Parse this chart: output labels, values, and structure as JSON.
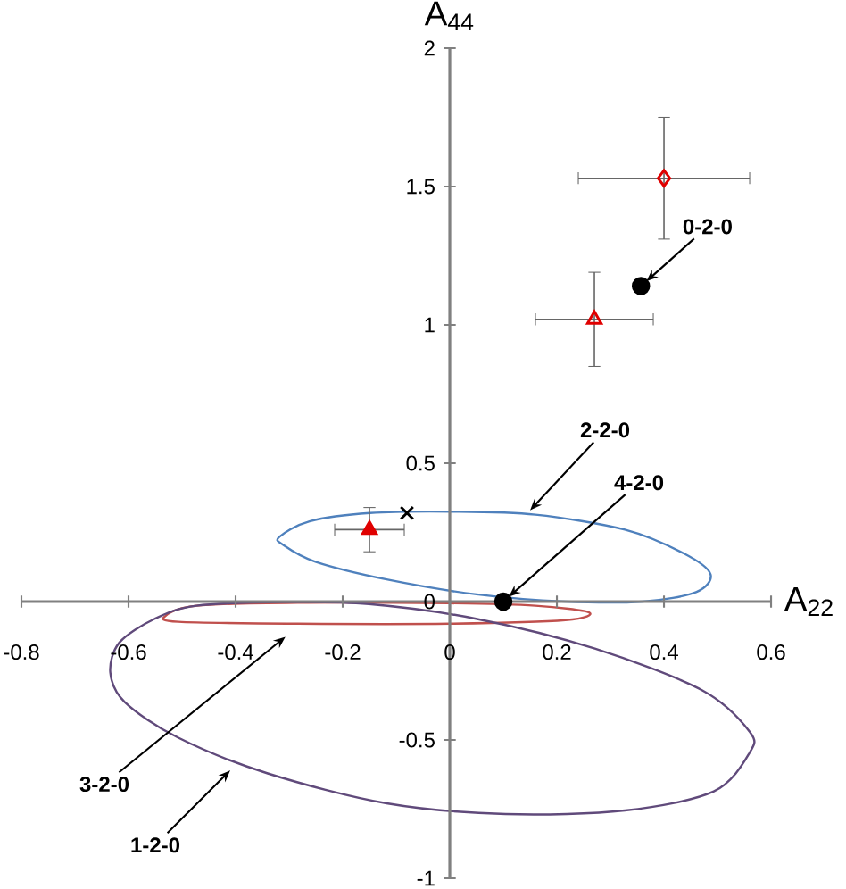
{
  "chart_data": {
    "type": "scatter",
    "xlabel": "A$_{22}$",
    "ylabel": "A$_{44}$",
    "xlim": [
      -0.8,
      0.6
    ],
    "ylim": [
      -1,
      2
    ],
    "xticks": [
      -0.8,
      -0.6,
      -0.4,
      -0.2,
      0,
      0.2,
      0.4,
      0.6
    ],
    "yticks": [
      -1,
      -0.5,
      0,
      0.5,
      1,
      1.5,
      2
    ],
    "grid": false,
    "series": [
      {
        "type": "scatter",
        "color": "#e00000",
        "marker": "diamond",
        "x": [
          0.4
        ],
        "values": [
          1.53
        ],
        "errors": [
          0.22
        ],
        "xerrors": [
          0.16
        ]
      },
      {
        "type": "scatter",
        "color": "#e00000",
        "marker": "triangle",
        "x": [
          0.27
        ],
        "values": [
          1.02
        ],
        "errors": [
          0.17
        ],
        "xerrors": [
          0.11
        ]
      },
      {
        "type": "scatter",
        "color": "#e00000",
        "marker": "triangle*",
        "x": [
          -0.15
        ],
        "values": [
          0.26
        ],
        "errors": [
          0.08
        ],
        "xerrors": [
          0.065
        ]
      },
      {
        "type": "scatter",
        "color": "#000000",
        "marker": "circle*",
        "x": [
          0.357,
          0.1
        ],
        "values": [
          1.14,
          0.0
        ]
      },
      {
        "type": "scatter",
        "color": "#000000",
        "marker": "cross",
        "x": [
          -0.08
        ],
        "values": [
          0.32
        ]
      }
    ],
    "annotations": [
      {
        "text": "0-2-0",
        "x": 0.357,
        "y": 1.14
      },
      "2-2-0",
      {
        "text": "4-2-0",
        "x": 0.1,
        "y": 0.0
      },
      "3-2-0",
      "1-2-0"
    ]
  }
}
